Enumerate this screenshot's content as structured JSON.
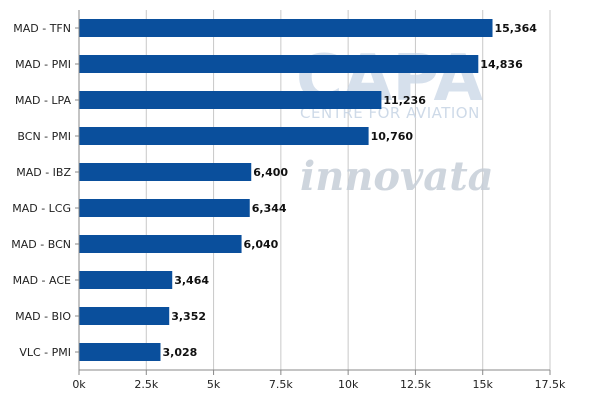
{
  "chart_data": {
    "type": "bar",
    "orientation": "horizontal",
    "categories": [
      "MAD - TFN",
      "MAD - PMI",
      "MAD - LPA",
      "BCN - PMI",
      "MAD - IBZ",
      "MAD - LCG",
      "MAD - BCN",
      "MAD - ACE",
      "MAD - BIO",
      "VLC - PMI"
    ],
    "values": [
      15364,
      14836,
      11236,
      10760,
      6400,
      6344,
      6040,
      3464,
      3352,
      3028
    ],
    "value_labels": [
      "15,364",
      "14,836",
      "11,236",
      "10,760",
      "6,400",
      "6,344",
      "6,040",
      "3,464",
      "3,352",
      "3,028"
    ],
    "x_ticks": [
      0,
      2500,
      5000,
      7500,
      10000,
      12500,
      15000,
      17500
    ],
    "x_tick_labels": [
      "0k",
      "2.5k",
      "5k",
      "7.5k",
      "10k",
      "12.5k",
      "15k",
      "17.5k"
    ],
    "xlim": [
      0,
      17500
    ],
    "grid": "vertical",
    "bar_color": "#0a4f9c"
  },
  "watermark": {
    "brand": "CAPA",
    "tagline": "CENTRE FOR AVIATION",
    "partner": "innovata"
  }
}
